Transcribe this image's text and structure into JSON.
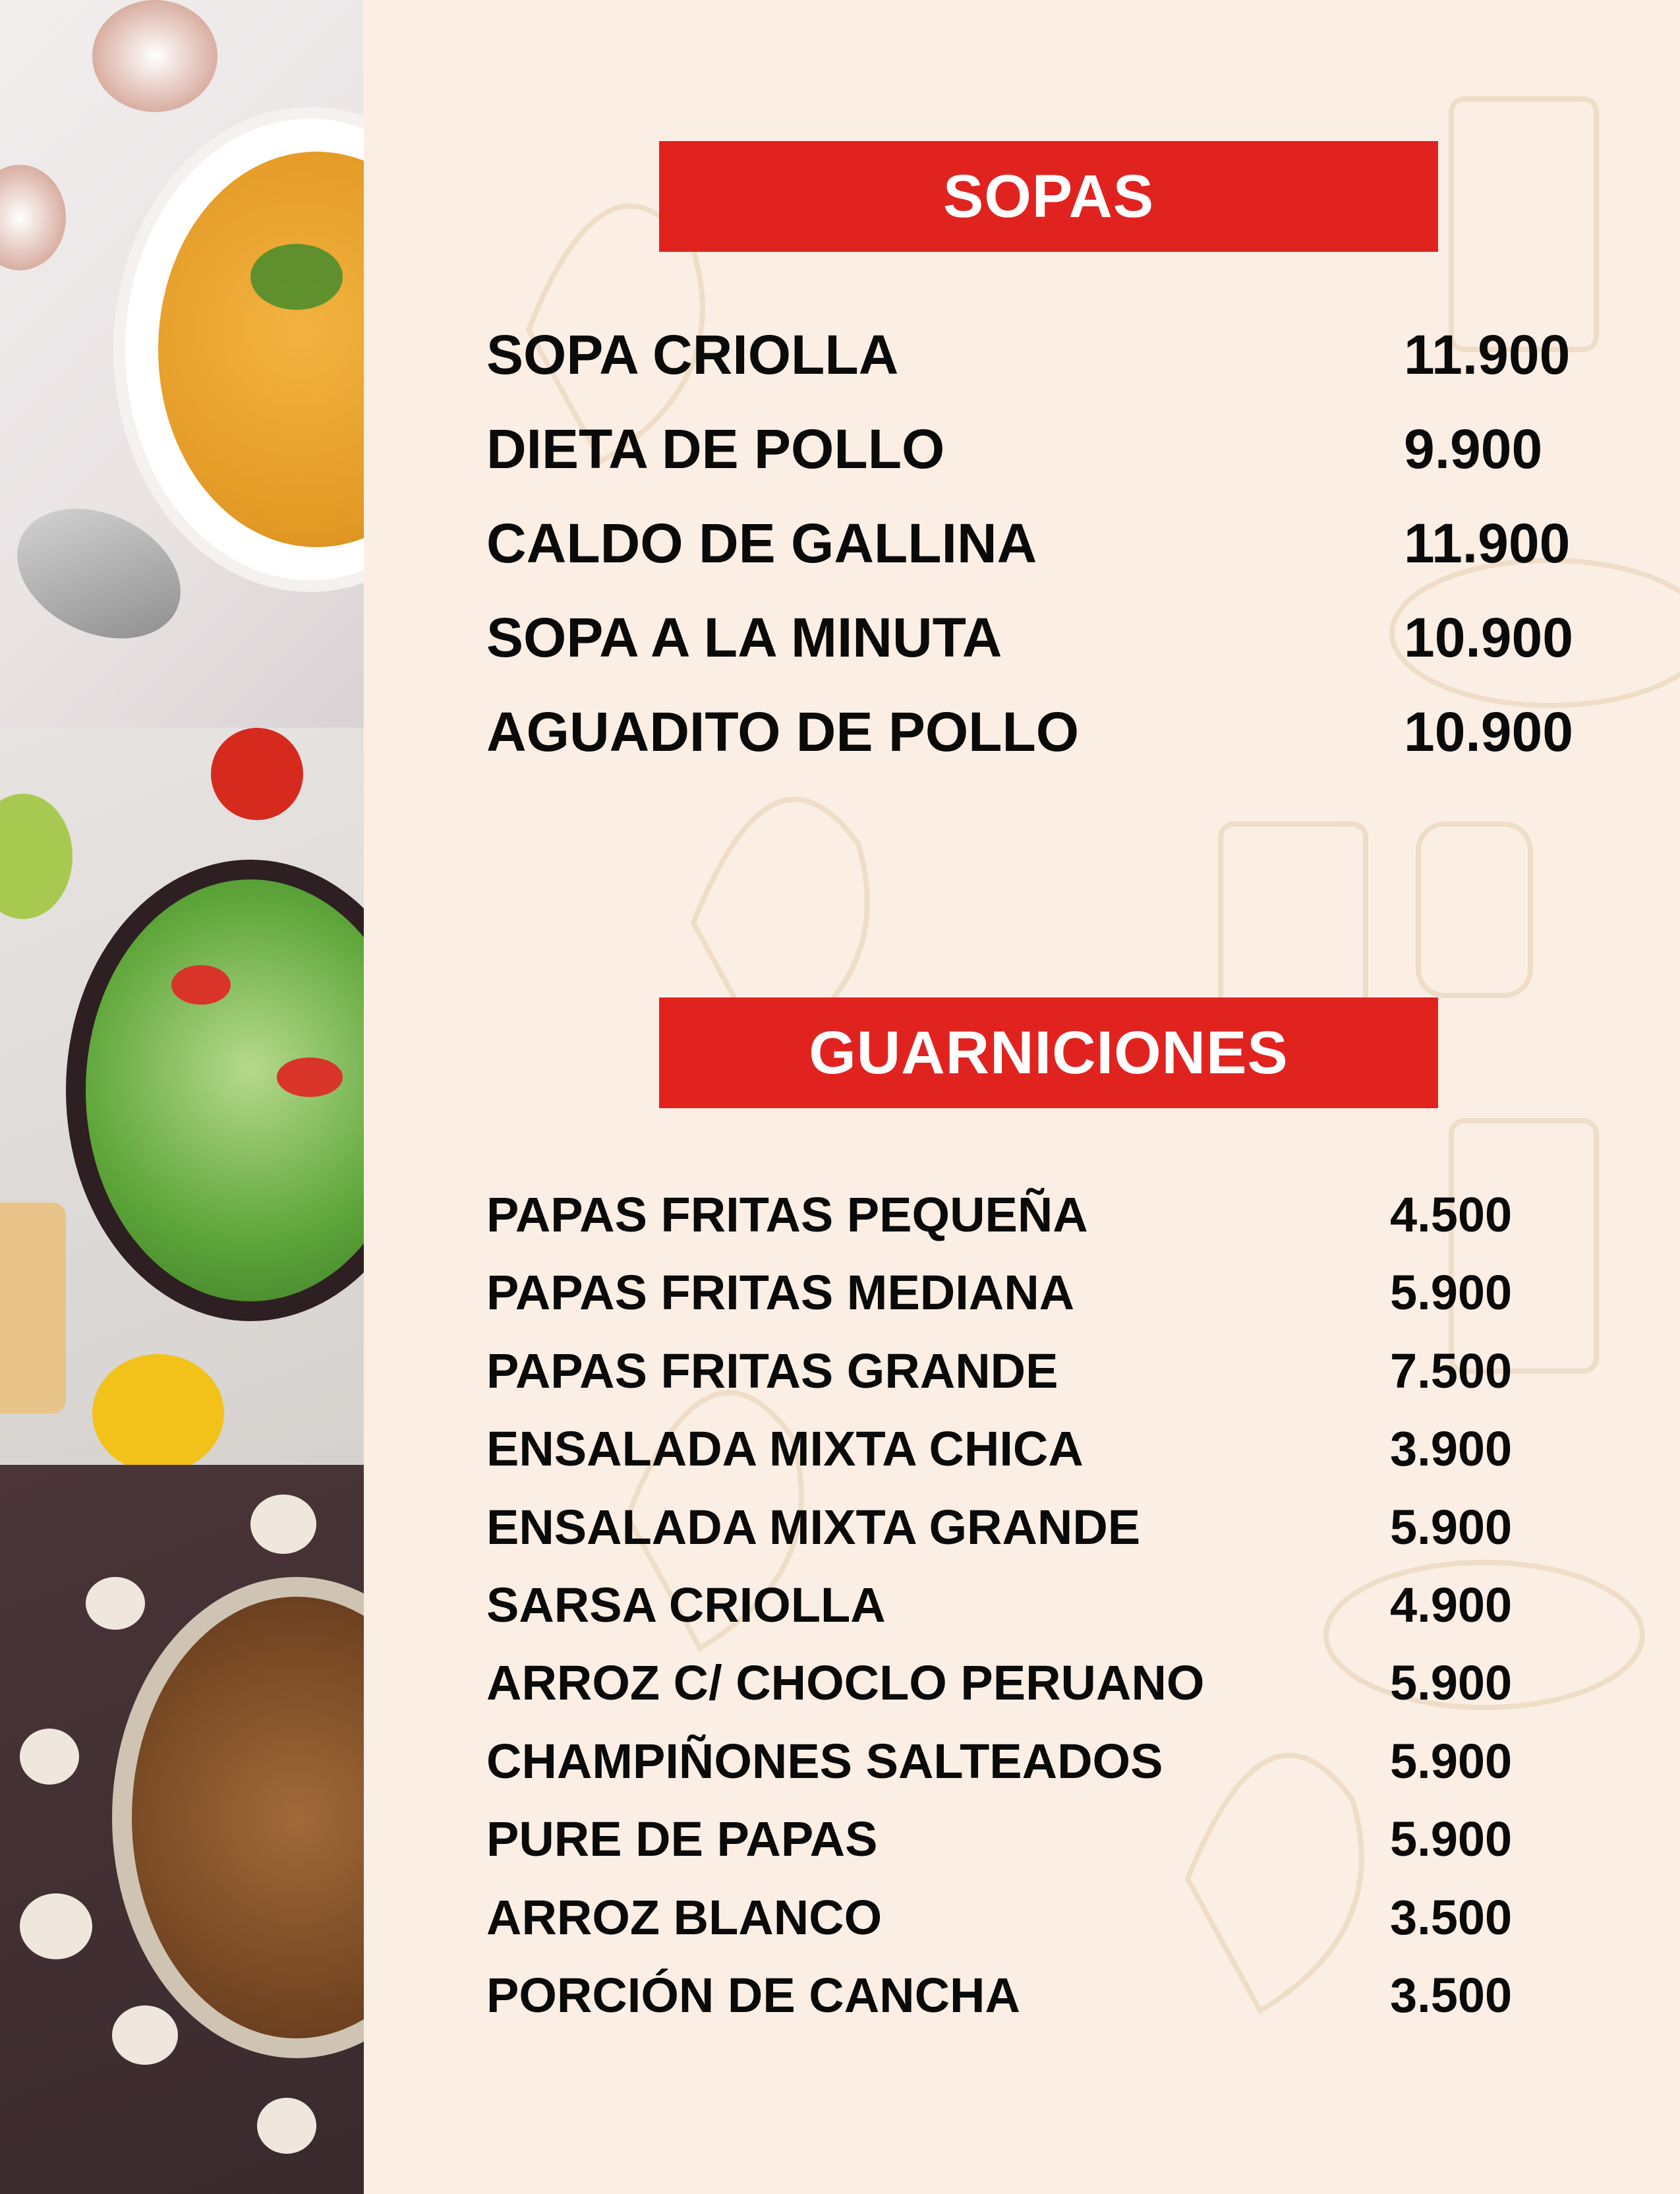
{
  "colors": {
    "background": "#fbefe5",
    "banner": "#e12320",
    "text": "#0a0a0a"
  },
  "photos": [
    "soup-bowl-photo",
    "salad-bowl-photo",
    "sauteed-mushrooms-photo"
  ],
  "sections": [
    {
      "title": "SOPAS",
      "items": [
        {
          "name": "SOPA CRIOLLA",
          "price": "11.900"
        },
        {
          "name": "DIETA DE POLLO",
          "price": "9.900"
        },
        {
          "name": "CALDO DE GALLINA",
          "price": "11.900"
        },
        {
          "name": "SOPA A LA MINUTA",
          "price": "10.900"
        },
        {
          "name": "AGUADITO DE POLLO",
          "price": "10.900"
        }
      ]
    },
    {
      "title": "GUARNICIONES",
      "items": [
        {
          "name": "PAPAS FRITAS PEQUEÑA",
          "price": "4.500"
        },
        {
          "name": "PAPAS FRITAS MEDIANA",
          "price": "5.900"
        },
        {
          "name": "PAPAS FRITAS GRANDE",
          "price": "7.500"
        },
        {
          "name": "ENSALADA MIXTA CHICA",
          "price": "3.900"
        },
        {
          "name": "ENSALADA MIXTA GRANDE",
          "price": "5.900"
        },
        {
          "name": "SARSA CRIOLLA",
          "price": "4.900"
        },
        {
          "name": "ARROZ C/ CHOCLO PERUANO",
          "price": "5.900"
        },
        {
          "name": "CHAMPIÑONES SALTEADOS",
          "price": "5.900"
        },
        {
          "name": "PURE DE PAPAS",
          "price": "5.900"
        },
        {
          "name": "ARROZ BLANCO",
          "price": "3.500"
        },
        {
          "name": "PORCIÓN DE CANCHA",
          "price": "3.500"
        }
      ]
    }
  ]
}
